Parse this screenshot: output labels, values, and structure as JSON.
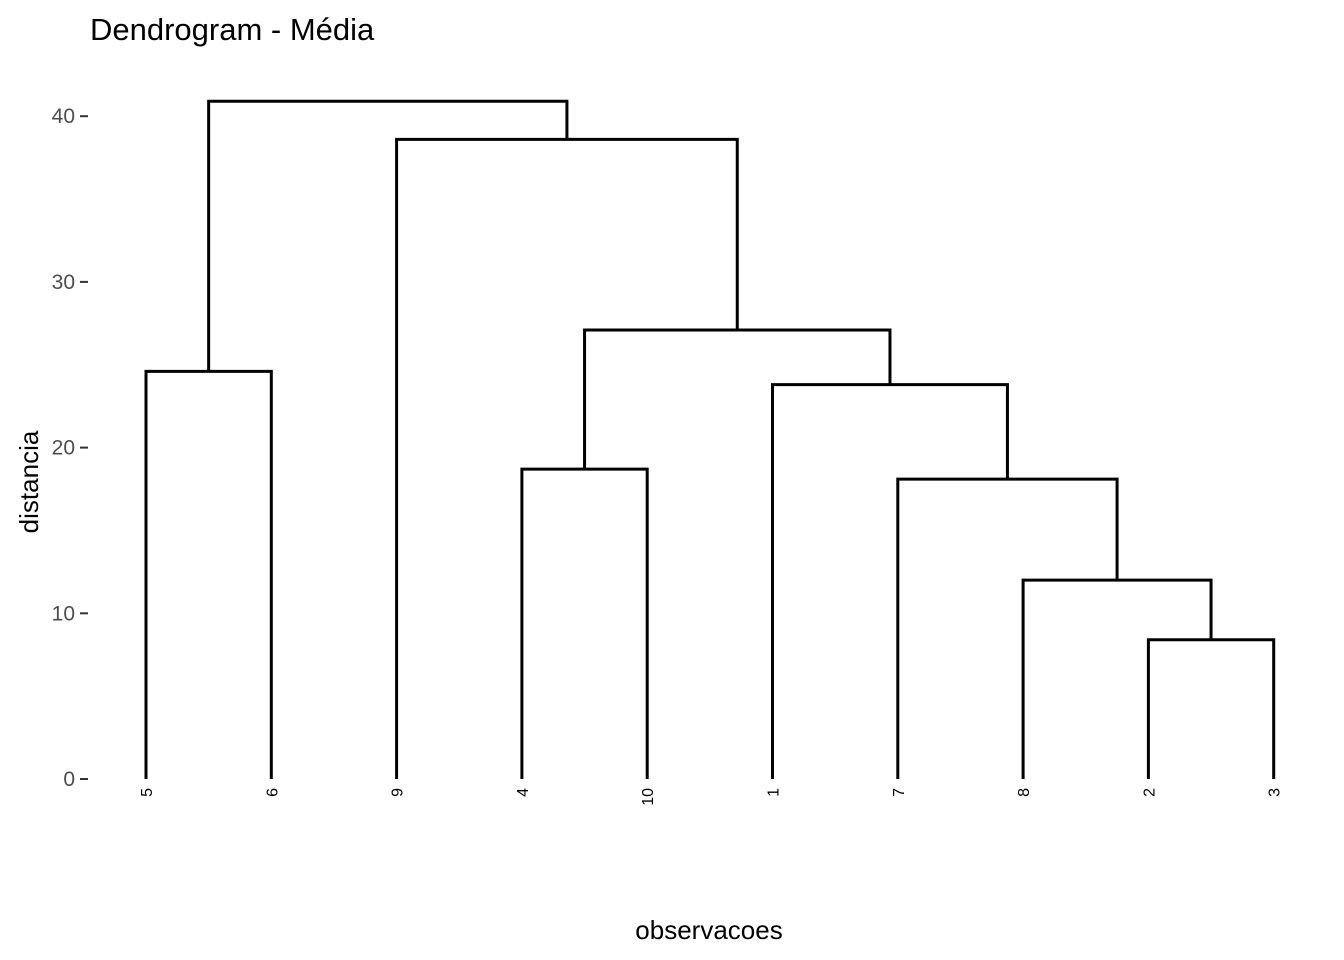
{
  "chart_data": {
    "type": "dendrogram",
    "title": "Dendrogram - Média",
    "xlabel": "observacoes",
    "ylabel": "distancia",
    "ylim": [
      0,
      42.5
    ],
    "y_ticks": [
      0,
      10,
      20,
      30,
      40
    ],
    "grid": false,
    "leaves": [
      "5",
      "6",
      "9",
      "4",
      "10",
      "1",
      "7",
      "8",
      "2",
      "3"
    ],
    "merges": [
      {
        "left": "leaf:2",
        "right": "leaf:3",
        "height": 8.4
      },
      {
        "left": "leaf:8",
        "right": "merge:0",
        "height": 12.0
      },
      {
        "left": "leaf:7",
        "right": "merge:1",
        "height": 18.1
      },
      {
        "left": "leaf:4",
        "right": "leaf:10",
        "height": 18.7
      },
      {
        "left": "leaf:1",
        "right": "merge:2",
        "height": 23.8
      },
      {
        "left": "leaf:5",
        "right": "leaf:6",
        "height": 24.6
      },
      {
        "left": "merge:3",
        "right": "merge:4",
        "height": 27.1
      },
      {
        "left": "leaf:9",
        "right": "merge:6",
        "height": 38.6
      },
      {
        "left": "merge:5",
        "right": "merge:7",
        "height": 40.9
      }
    ]
  }
}
